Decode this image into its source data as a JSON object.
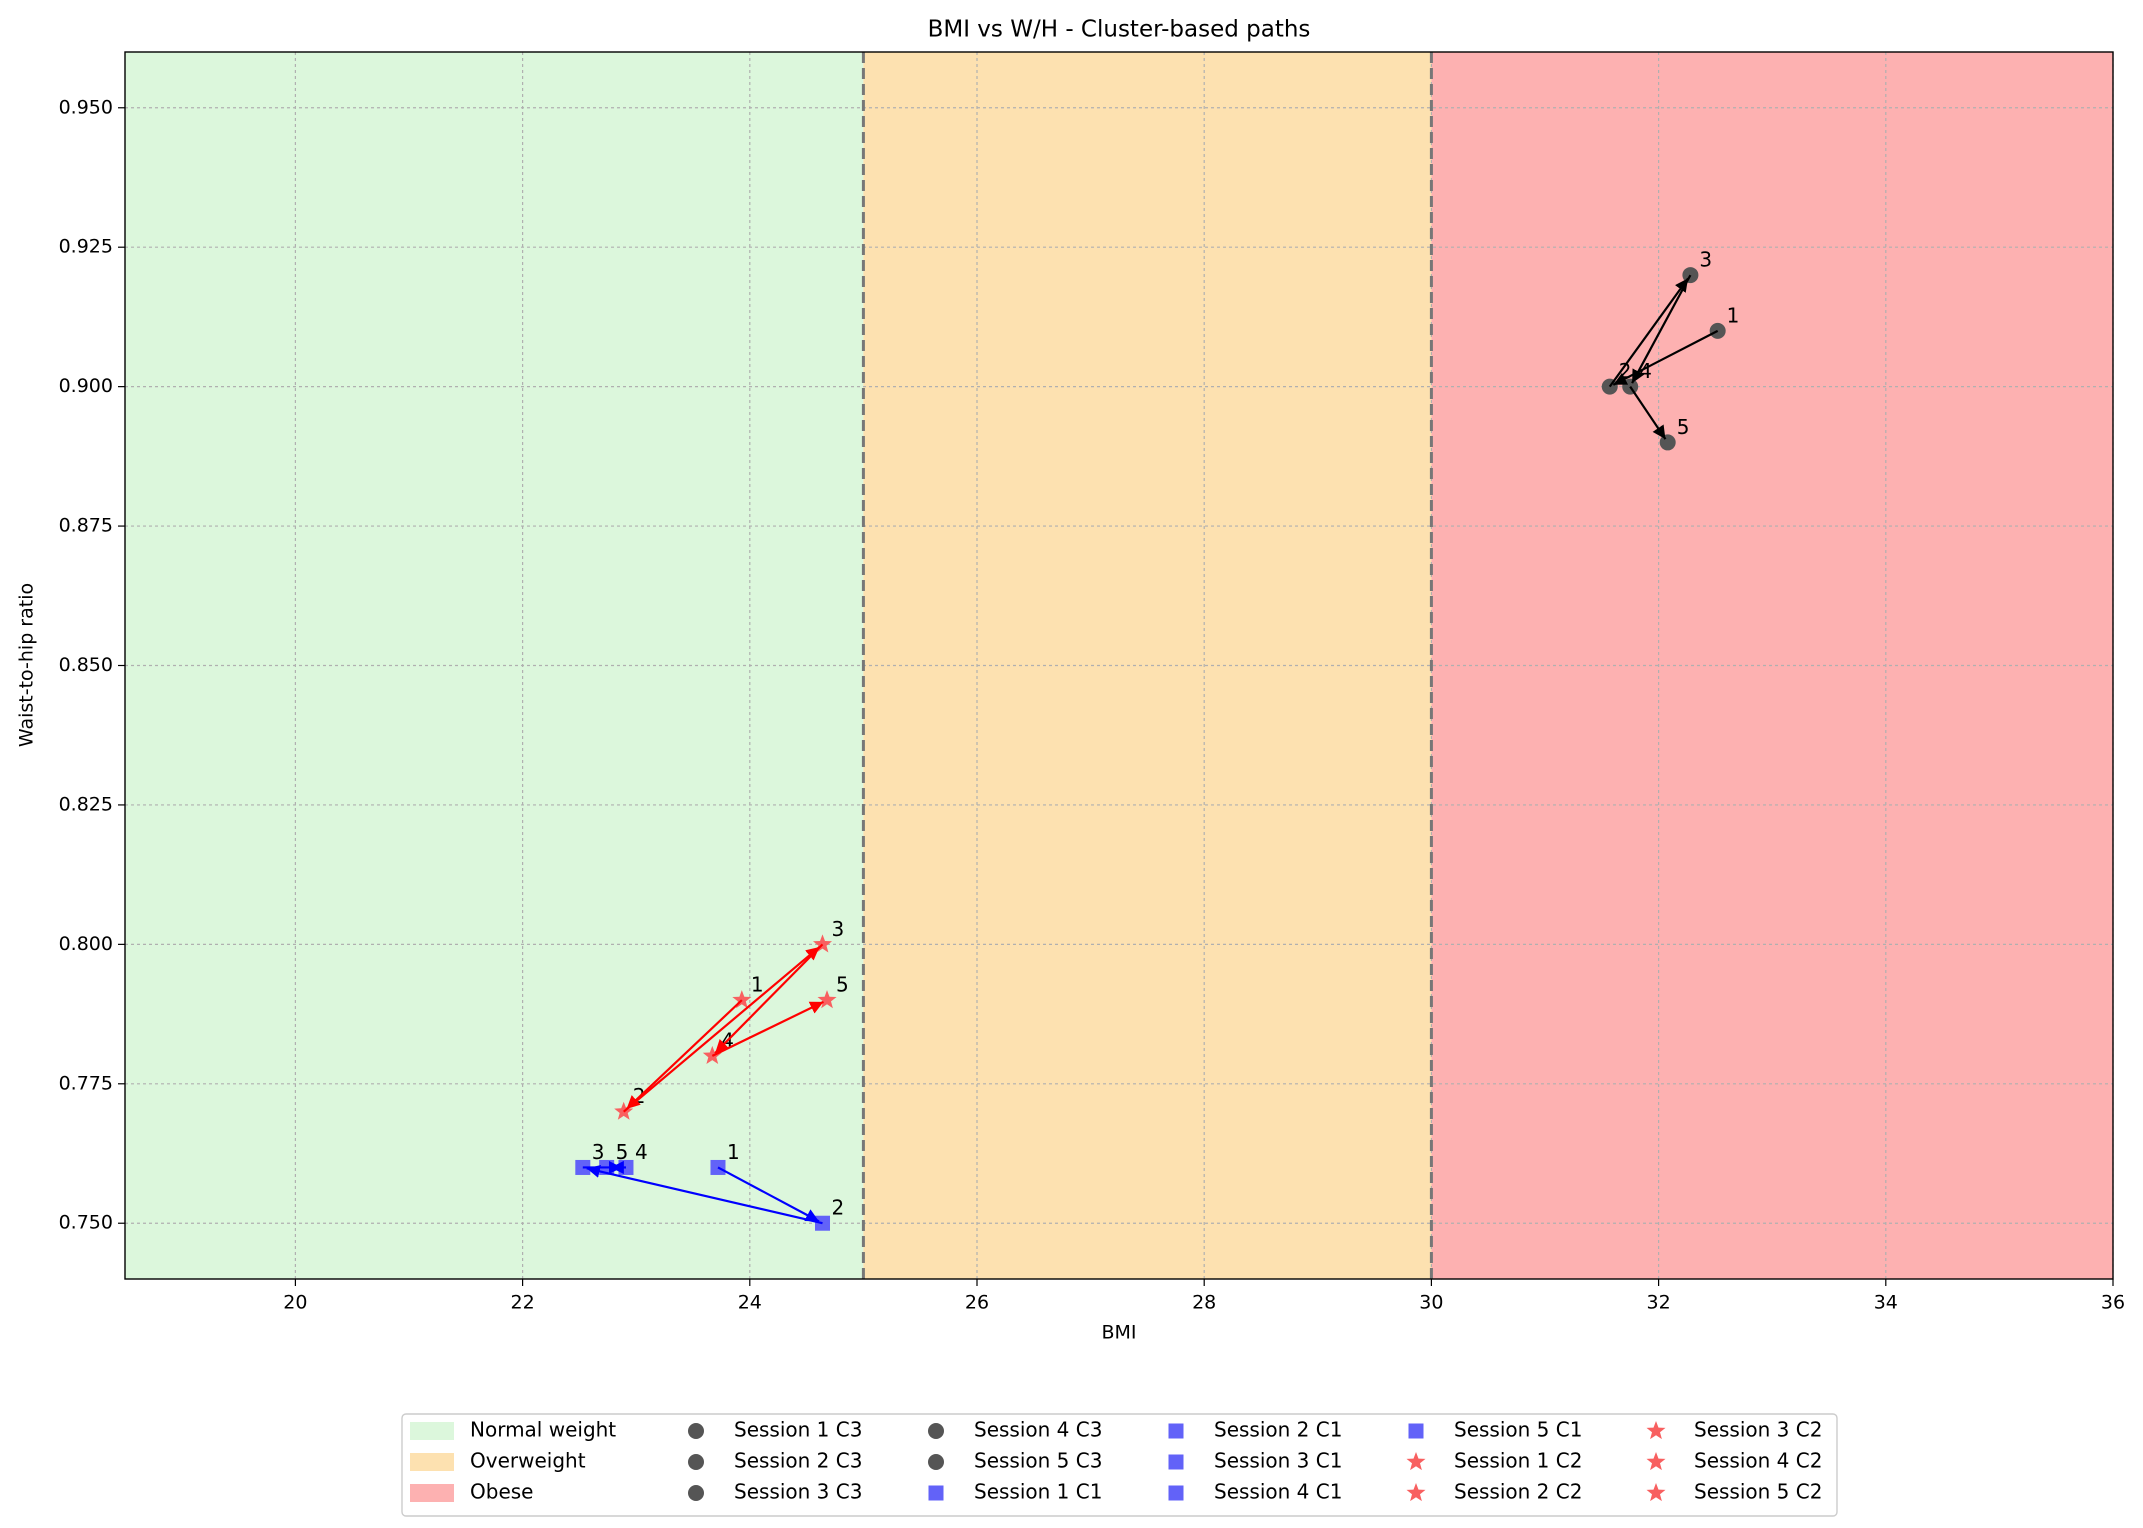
{
  "chart_data": {
    "type": "scatter",
    "title": "BMI vs W/H - Cluster-based paths",
    "x_label": "BMI",
    "y_label": "Waist-to-hip ratio",
    "xlim": [
      18.5,
      36
    ],
    "ylim": [
      0.74,
      0.96
    ],
    "xticks": [
      20,
      22,
      24,
      26,
      28,
      30,
      32,
      34,
      36
    ],
    "yticks": [
      {
        "value": 0.75,
        "label": "0.750"
      },
      {
        "value": 0.775,
        "label": "0.775"
      },
      {
        "value": 0.8,
        "label": "0.800"
      },
      {
        "value": 0.825,
        "label": "0.825"
      },
      {
        "value": 0.85,
        "label": "0.850"
      },
      {
        "value": 0.875,
        "label": "0.875"
      },
      {
        "value": 0.9,
        "label": "0.900"
      },
      {
        "value": 0.925,
        "label": "0.925"
      },
      {
        "value": 0.95,
        "label": "0.950"
      }
    ],
    "grid": true,
    "zones": [
      {
        "name": "Normal weight",
        "range": [
          18.5,
          25
        ],
        "color": "#dcf7dc"
      },
      {
        "name": "Overweight",
        "range": [
          25,
          30
        ],
        "color": "#fde1b0"
      },
      {
        "name": "Obese",
        "range": [
          30,
          36
        ],
        "color": "#fdb1b1"
      }
    ],
    "zone_boundaries": [
      25,
      30
    ],
    "series": [
      {
        "marker": "circle",
        "color": "#555555",
        "arrow_color": "#000000",
        "legend": [
          "Session 1 C3",
          "Session 2 C3",
          "Session 3 C3",
          "Session 4 C3",
          "Session 5 C3"
        ],
        "labels": [
          "1",
          "2",
          "3",
          "4",
          "5"
        ],
        "x": [
          32.52,
          31.57,
          32.28,
          31.75,
          32.08
        ],
        "y": [
          0.91,
          0.9,
          0.92,
          0.9,
          0.89
        ]
      },
      {
        "marker": "square",
        "color": "#6262f8",
        "arrow_color": "#0000ff",
        "legend": [
          "Session 1 C1",
          "Session 2 C1",
          "Session 3 C1",
          "Session 4 C1",
          "Session 5 C1"
        ],
        "labels": [
          "1",
          "2",
          "3",
          "4",
          "5"
        ],
        "x": [
          23.72,
          24.64,
          22.53,
          22.91,
          22.74
        ],
        "y": [
          0.76,
          0.75,
          0.76,
          0.76,
          0.76
        ]
      },
      {
        "marker": "star",
        "color": "#f86060",
        "arrow_color": "#ff0000",
        "legend": [
          "Session 1 C2",
          "Session 2 C2",
          "Session 3 C2",
          "Session 4 C2",
          "Session 5 C2"
        ],
        "labels": [
          "1",
          "2",
          "3",
          "4",
          "5"
        ],
        "x": [
          23.93,
          22.89,
          24.64,
          23.67,
          24.68
        ],
        "y": [
          0.79,
          0.77,
          0.8,
          0.78,
          0.79
        ]
      }
    ]
  }
}
